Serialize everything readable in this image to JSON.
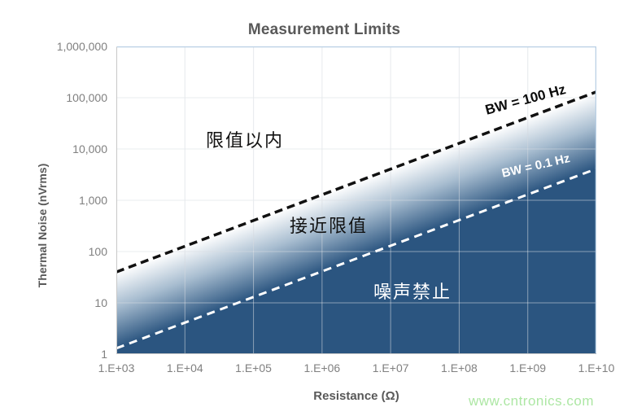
{
  "watermark": "www.cntronics.com",
  "chart_data": {
    "type": "line",
    "title": "Measurement Limits",
    "xlabel": "Resistance (Ω)",
    "ylabel": "Thermal Noise (nVrms)",
    "x_scale": "log",
    "y_scale": "log",
    "xlim": [
      1000,
      10000000000
    ],
    "ylim": [
      1,
      1000000
    ],
    "x_ticks": [
      "1.E+03",
      "1.E+04",
      "1.E+05",
      "1.E+06",
      "1.E+07",
      "1.E+08",
      "1.E+09",
      "1.E+10"
    ],
    "y_ticks": [
      "1,000,000",
      "100,000",
      "10,000",
      "1,000",
      "100",
      "10",
      "1"
    ],
    "grid": true,
    "legend_position": "labels-on-lines",
    "series": [
      {
        "name": "BW = 100 Hz",
        "style": "dashed",
        "color": "#111111",
        "points": [
          {
            "x": 1000,
            "y": 40
          },
          {
            "x": 10000000000,
            "y": 130000
          }
        ]
      },
      {
        "name": "BW = 0.1 Hz",
        "style": "dashed",
        "color": "#ffffff",
        "points": [
          {
            "x": 1000,
            "y": 1.3
          },
          {
            "x": 10000000000,
            "y": 4100
          }
        ]
      }
    ],
    "annotations": [
      {
        "text": "限值以内",
        "color": "#111111",
        "zone": "above BW=100Hz line"
      },
      {
        "text": "接近限值",
        "color": "#111111",
        "zone": "between lines"
      },
      {
        "text": "噪声禁止",
        "color": "#ffffff",
        "zone": "below BW=0.1Hz line"
      }
    ],
    "colors": {
      "fill_light": "#ffffff",
      "fill_mid": "#a8bdd0",
      "fill_dark": "#2b5580",
      "border_blue": "#b9cfe4",
      "border_gray": "#c8c8c8",
      "grid_gray": "rgba(130,145,160,0.28)",
      "grid_white": "rgba(255,255,255,0.38)",
      "title_color": "#595959",
      "tick_color": "#808080"
    }
  }
}
